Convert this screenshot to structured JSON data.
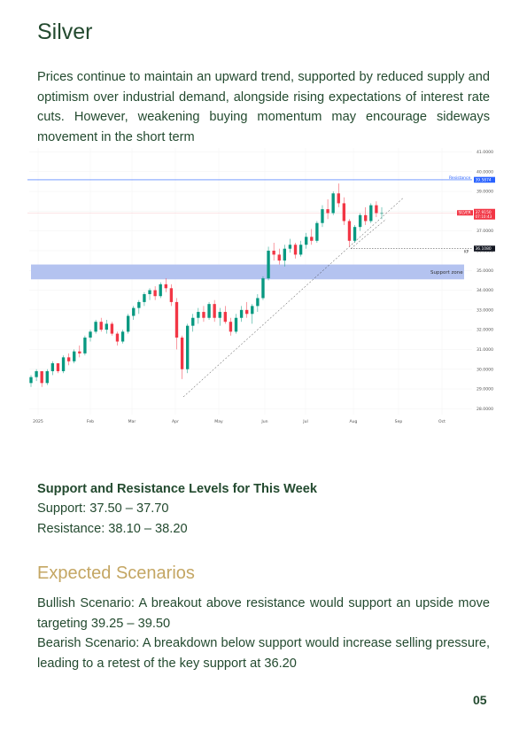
{
  "title": "Silver",
  "intro": "Prices continue to maintain an upward trend, supported by reduced supply and optimism over industrial demand, alongside rising expectations of interest rate cuts. However, weakening buying momentum may encourage sideways movement in the short term",
  "chart_data": {
    "type": "candlestick",
    "x_ticks": [
      "2025",
      "Feb",
      "Mar",
      "Apr",
      "May",
      "Jun",
      "Jul",
      "Aug",
      "Sep",
      "Oct"
    ],
    "y_ticks": [
      "41.0000",
      "40.0000",
      "39.0000",
      "38.0000",
      "37.0000",
      "36.0000",
      "35.0000",
      "34.0000",
      "33.0000",
      "32.0000",
      "31.0000",
      "30.0000",
      "29.0000",
      "28.0000"
    ],
    "ylim": [
      27.7,
      41.2
    ],
    "resistance": {
      "label": "Resistance",
      "value": 39.5874,
      "value_label": "39.5874",
      "color": "#2962ff"
    },
    "current_price": {
      "label": "SILVER",
      "value_label": "37.9150",
      "sub_label": "07:10:43",
      "value": 37.915,
      "color": "#f23645"
    },
    "key_level": {
      "label": "KP",
      "value_label": "36.1080",
      "value": 36.108
    },
    "support_zone": {
      "label": "Support zone",
      "low": 34.55,
      "high": 35.3,
      "color": "#b4c3f0"
    },
    "candles": [
      [
        29.3,
        29.7,
        29.1,
        29.6
      ],
      [
        29.6,
        30.0,
        29.4,
        29.9
      ],
      [
        29.9,
        29.9,
        29.1,
        29.3
      ],
      [
        29.3,
        30.0,
        29.2,
        29.9
      ],
      [
        29.9,
        30.4,
        29.7,
        30.3
      ],
      [
        30.3,
        30.3,
        29.8,
        29.9
      ],
      [
        29.9,
        30.7,
        29.8,
        30.6
      ],
      [
        30.6,
        30.8,
        30.2,
        30.4
      ],
      [
        30.4,
        31.0,
        30.3,
        30.9
      ],
      [
        30.9,
        31.2,
        30.6,
        30.8
      ],
      [
        30.8,
        31.7,
        30.7,
        31.6
      ],
      [
        31.6,
        32.0,
        31.4,
        31.9
      ],
      [
        31.9,
        32.5,
        31.8,
        32.4
      ],
      [
        32.4,
        32.6,
        31.9,
        32.0
      ],
      [
        32.0,
        32.5,
        31.8,
        32.3
      ],
      [
        32.3,
        32.4,
        31.7,
        31.8
      ],
      [
        31.8,
        31.9,
        31.2,
        31.4
      ],
      [
        31.4,
        32.0,
        31.3,
        31.9
      ],
      [
        31.9,
        32.8,
        31.8,
        32.7
      ],
      [
        32.7,
        33.2,
        32.5,
        33.1
      ],
      [
        33.1,
        33.5,
        32.8,
        33.4
      ],
      [
        33.4,
        33.9,
        33.2,
        33.8
      ],
      [
        33.8,
        34.1,
        33.5,
        34.0
      ],
      [
        34.0,
        34.2,
        33.5,
        33.7
      ],
      [
        33.7,
        34.4,
        33.6,
        34.3
      ],
      [
        34.3,
        34.6,
        33.9,
        34.1
      ],
      [
        34.1,
        34.3,
        33.2,
        33.4
      ],
      [
        33.4,
        33.6,
        31.0,
        31.6
      ],
      [
        31.6,
        31.7,
        29.5,
        30.0
      ],
      [
        30.0,
        32.3,
        29.8,
        32.2
      ],
      [
        32.2,
        32.8,
        31.9,
        32.6
      ],
      [
        32.6,
        33.1,
        32.3,
        32.9
      ],
      [
        32.9,
        33.2,
        32.4,
        32.6
      ],
      [
        32.6,
        33.4,
        32.5,
        33.3
      ],
      [
        33.3,
        33.5,
        32.4,
        32.6
      ],
      [
        32.6,
        33.1,
        32.2,
        32.9
      ],
      [
        32.9,
        33.2,
        32.3,
        32.4
      ],
      [
        32.4,
        32.6,
        31.7,
        31.9
      ],
      [
        31.9,
        32.8,
        31.8,
        32.6
      ],
      [
        32.6,
        33.2,
        32.4,
        33.0
      ],
      [
        33.0,
        33.4,
        32.6,
        32.8
      ],
      [
        32.8,
        33.3,
        32.3,
        33.2
      ],
      [
        33.2,
        33.8,
        32.9,
        33.6
      ],
      [
        33.6,
        34.7,
        33.5,
        34.6
      ],
      [
        34.6,
        36.2,
        34.5,
        36.0
      ],
      [
        36.0,
        36.4,
        35.5,
        35.8
      ],
      [
        35.8,
        36.1,
        35.3,
        35.5
      ],
      [
        35.5,
        36.3,
        35.2,
        36.1
      ],
      [
        36.1,
        36.6,
        35.9,
        36.3
      ],
      [
        36.3,
        36.4,
        35.6,
        35.8
      ],
      [
        35.8,
        36.5,
        35.7,
        36.3
      ],
      [
        36.3,
        36.9,
        36.1,
        36.7
      ],
      [
        36.7,
        37.1,
        36.3,
        36.5
      ],
      [
        36.5,
        37.5,
        36.4,
        37.4
      ],
      [
        37.4,
        38.3,
        37.2,
        38.1
      ],
      [
        38.1,
        38.6,
        37.6,
        37.9
      ],
      [
        37.9,
        39.0,
        37.8,
        38.9
      ],
      [
        38.9,
        39.4,
        38.2,
        38.4
      ],
      [
        38.4,
        38.7,
        37.3,
        37.5
      ],
      [
        37.5,
        37.6,
        36.2,
        36.5
      ],
      [
        36.5,
        37.3,
        36.4,
        37.2
      ],
      [
        37.2,
        37.9,
        37.0,
        37.8
      ],
      [
        37.8,
        38.2,
        37.3,
        37.5
      ],
      [
        37.5,
        38.4,
        37.4,
        38.3
      ],
      [
        38.3,
        38.5,
        37.7,
        37.9
      ],
      [
        37.9,
        38.2,
        37.6,
        37.9
      ]
    ]
  },
  "sr": {
    "heading": "Support and Resistance Levels for This Week",
    "support": "Support: 37.50 – 37.70",
    "resistance": "Resistance: 38.10 – 38.20"
  },
  "scenarios": {
    "heading": "Expected Scenarios",
    "bullish": "Bullish Scenario: A breakout above resistance would support an upside move targeting 39.25 – 39.50",
    "bearish": "Bearish Scenario: A breakdown below support would increase selling pressure, leading to a retest of the key support at 36.20"
  },
  "page_number": "05"
}
